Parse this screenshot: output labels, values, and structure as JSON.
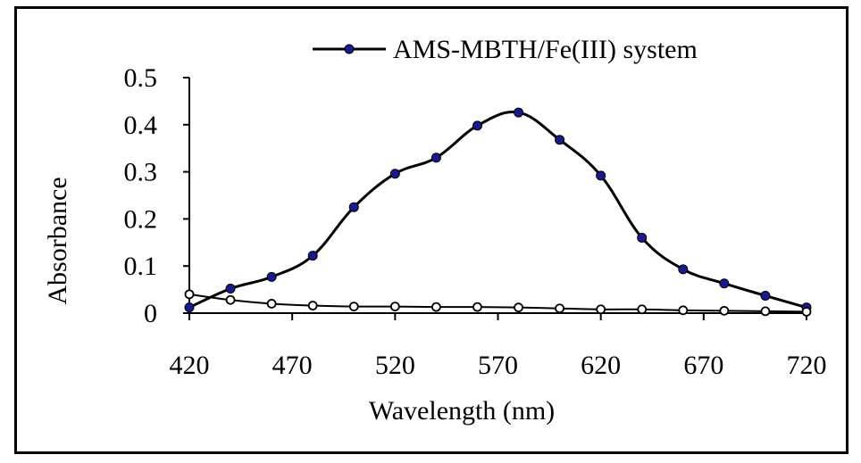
{
  "chart_data": {
    "type": "line",
    "title": "",
    "xlabel": "Wavelength (nm)",
    "ylabel": "Absorbance",
    "xlim": [
      420,
      720
    ],
    "ylim": [
      0,
      0.5
    ],
    "x_ticks": [
      420,
      470,
      520,
      570,
      620,
      670,
      720
    ],
    "y_ticks": [
      0,
      0.1,
      0.2,
      0.3,
      0.4,
      0.5
    ],
    "grid": false,
    "legend_position": "top",
    "series": [
      {
        "name": "AMS-MBTH/Fe(III) system",
        "color": "#000000",
        "marker": "filled-circle",
        "marker_color": "#1a1a8c",
        "x": [
          420,
          440,
          460,
          480,
          500,
          520,
          540,
          560,
          580,
          600,
          620,
          640,
          660,
          680,
          700,
          720
        ],
        "y": [
          0.012,
          0.052,
          0.077,
          0.122,
          0.225,
          0.296,
          0.33,
          0.398,
          0.426,
          0.368,
          0.292,
          0.16,
          0.093,
          0.063,
          0.037,
          0.012
        ]
      },
      {
        "color": "#000000",
        "marker": "open-circle",
        "x": [
          420,
          440,
          460,
          480,
          500,
          520,
          540,
          560,
          580,
          600,
          620,
          640,
          660,
          680,
          700,
          720
        ],
        "y": [
          0.04,
          0.028,
          0.02,
          0.016,
          0.014,
          0.014,
          0.013,
          0.013,
          0.012,
          0.01,
          0.008,
          0.008,
          0.006,
          0.005,
          0.004,
          0.003
        ]
      }
    ]
  }
}
